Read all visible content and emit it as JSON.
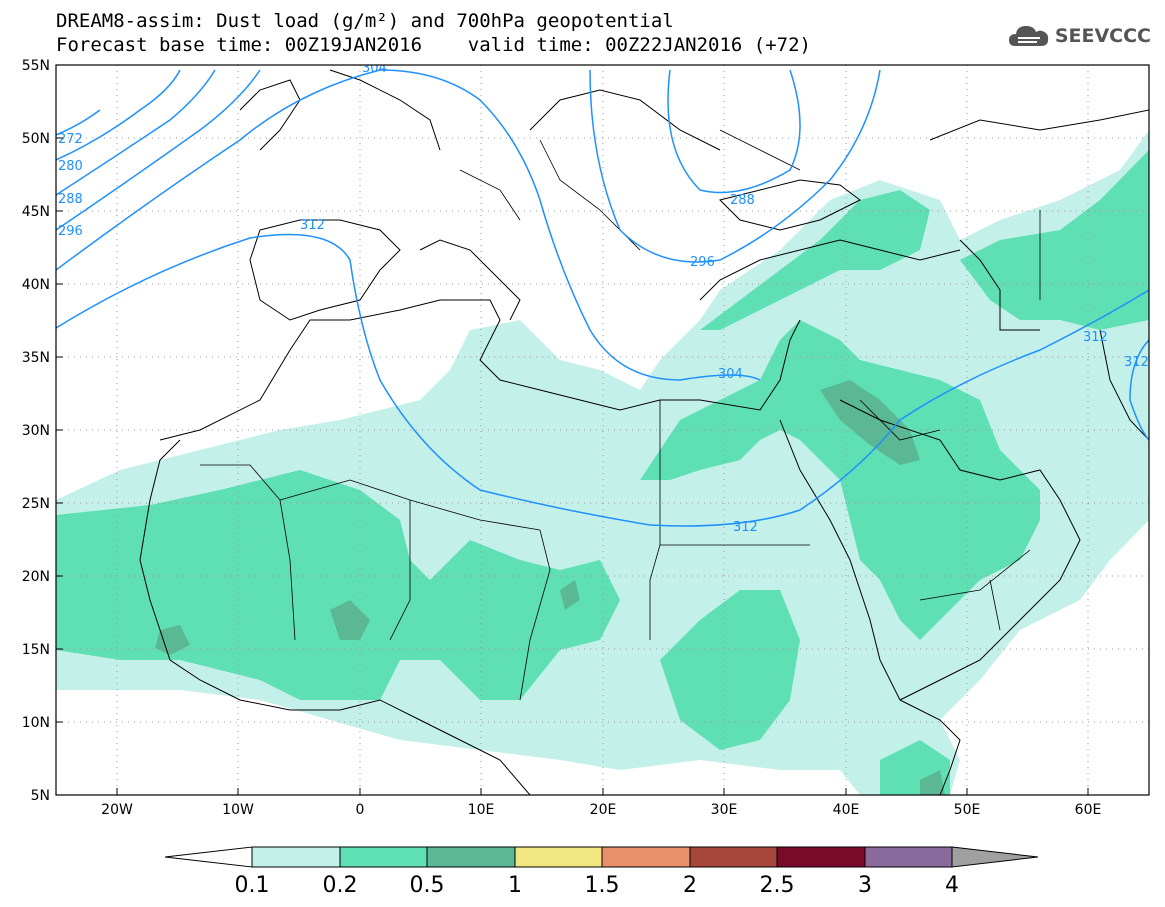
{
  "title": {
    "line1": "DREAM8-assim: Dust load (g/m²) and 700hPa geopotential",
    "line2": "Forecast base time: 00Z19JAN2016    valid time: 00Z22JAN2016 (+72)"
  },
  "logo": {
    "text": "SEEVCCC",
    "icon": "cloud-icon"
  },
  "map": {
    "lon_range": [
      -25,
      65
    ],
    "lat_range": [
      5,
      55
    ],
    "lon_ticks": [
      "20W",
      "10W",
      "0",
      "10E",
      "20E",
      "30E",
      "40E",
      "50E",
      "60E"
    ],
    "lat_ticks": [
      "55N",
      "50N",
      "45N",
      "40N",
      "35N",
      "30N",
      "25N",
      "20N",
      "15N",
      "10N",
      "5N"
    ],
    "gridlines": "dotted"
  },
  "contours": {
    "labels": [
      "304",
      "272",
      "280",
      "288",
      "296",
      "312",
      "288",
      "296",
      "304",
      "312",
      "312",
      "312"
    ],
    "color": "#1e90ff"
  },
  "colorbar": {
    "levels": [
      "0.1",
      "0.2",
      "0.5",
      "1",
      "1.5",
      "2",
      "2.5",
      "3",
      "4"
    ],
    "colors": [
      "#c4f0ea",
      "#5ee0b4",
      "#5bb894",
      "#f2e680",
      "#e8906a",
      "#a8483c",
      "#7a0a2a",
      "#8a6a9c",
      "#a0a0a0"
    ],
    "under_color": "#ffffff",
    "over_color": "#a0a0a0"
  }
}
